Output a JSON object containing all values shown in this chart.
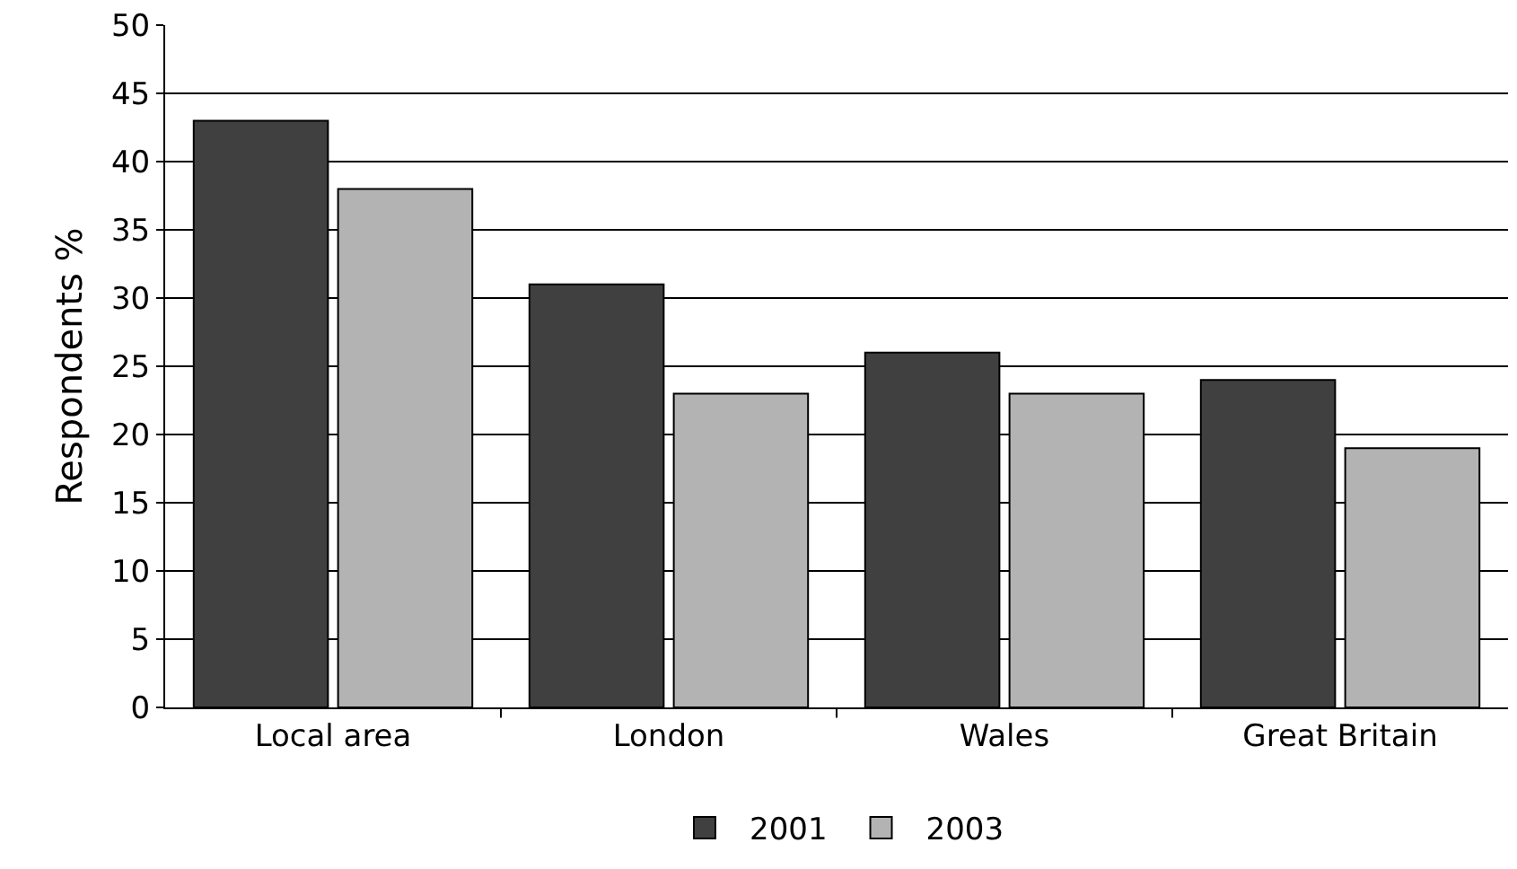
{
  "chart_data": {
    "type": "bar",
    "ylabel": "Respondents %",
    "categories": [
      "Local area",
      "London",
      "Wales",
      "Great Britain"
    ],
    "series": [
      {
        "name": "2001",
        "color": "#404040",
        "values": [
          43,
          31,
          26,
          24
        ]
      },
      {
        "name": "2003",
        "color": "#b3b3b3",
        "values": [
          38,
          23,
          23,
          19
        ]
      }
    ],
    "ylim": [
      0,
      50
    ],
    "yticks": [
      0,
      5,
      10,
      15,
      20,
      25,
      30,
      35,
      40,
      45,
      50
    ],
    "grid": "y",
    "legend": "bottom"
  }
}
